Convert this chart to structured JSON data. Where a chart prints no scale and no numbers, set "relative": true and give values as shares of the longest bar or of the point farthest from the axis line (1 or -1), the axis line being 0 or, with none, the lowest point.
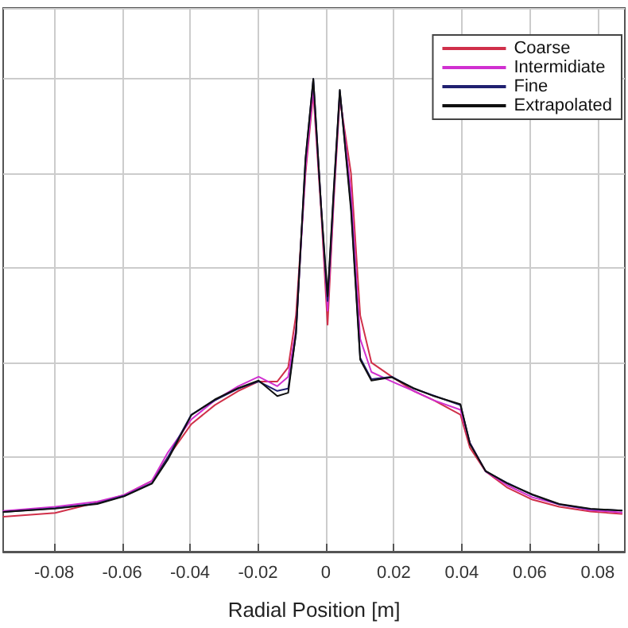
{
  "chart_data": {
    "type": "line",
    "xlabel": "Radial Position [m]",
    "relative": true,
    "x": [
      -0.0949,
      -0.0797,
      -0.0673,
      -0.0594,
      -0.0512,
      -0.0465,
      -0.0396,
      -0.0327,
      -0.0258,
      -0.0198,
      -0.0143,
      -0.0111,
      -0.0088,
      -0.006,
      -0.0037,
      -0.0014,
      0.0005,
      0.0023,
      0.0041,
      0.0074,
      0.0101,
      0.0134,
      0.0194,
      0.0258,
      0.0318,
      0.0396,
      0.0424,
      0.047,
      0.0535,
      0.0608,
      0.0687,
      0.0779,
      0.0871
    ],
    "series": [
      {
        "name": "Coarse",
        "color": "#d0304a",
        "values": [
          0.074,
          0.082,
          0.104,
          0.12,
          0.15,
          0.2,
          0.27,
          0.31,
          0.34,
          0.36,
          0.36,
          0.39,
          0.5,
          0.8,
          0.97,
          0.72,
          0.48,
          0.74,
          0.96,
          0.8,
          0.5,
          0.4,
          0.37,
          0.34,
          0.32,
          0.29,
          0.22,
          0.17,
          0.135,
          0.11,
          0.095,
          0.085,
          0.08
        ]
      },
      {
        "name": "Intermidiate",
        "color": "#d030d0",
        "values": [
          0.086,
          0.095,
          0.106,
          0.12,
          0.15,
          0.21,
          0.28,
          0.32,
          0.35,
          0.37,
          0.35,
          0.37,
          0.47,
          0.81,
          0.98,
          0.73,
          0.51,
          0.75,
          0.97,
          0.76,
          0.45,
          0.38,
          0.36,
          0.34,
          0.32,
          0.3,
          0.23,
          0.17,
          0.14,
          0.115,
          0.1,
          0.088,
          0.083
        ]
      },
      {
        "name": "Fine",
        "color": "#202070",
        "values": [
          0.084,
          0.092,
          0.102,
          0.118,
          0.145,
          0.2,
          0.29,
          0.32,
          0.345,
          0.36,
          0.34,
          0.345,
          0.46,
          0.83,
          1.0,
          0.73,
          0.53,
          0.76,
          0.975,
          0.73,
          0.41,
          0.365,
          0.37,
          0.345,
          0.33,
          0.31,
          0.23,
          0.17,
          0.145,
          0.12,
          0.1,
          0.09,
          0.087
        ]
      },
      {
        "name": "Extrapolated",
        "color": "#101010",
        "values": [
          0.084,
          0.091,
          0.101,
          0.117,
          0.144,
          0.195,
          0.289,
          0.322,
          0.346,
          0.362,
          0.329,
          0.336,
          0.463,
          0.832,
          1.0,
          0.73,
          0.54,
          0.765,
          0.977,
          0.721,
          0.406,
          0.362,
          0.369,
          0.346,
          0.329,
          0.312,
          0.228,
          0.171,
          0.144,
          0.121,
          0.101,
          0.091,
          0.087
        ]
      }
    ],
    "xlim": [
      -0.095,
      0.088
    ],
    "xticks": [
      -0.08,
      -0.06,
      -0.04,
      -0.02,
      0,
      0.02,
      0.04,
      0.06,
      0.08
    ],
    "grid": true,
    "legend": "top right",
    "marker": "none",
    "line_style": "solid"
  }
}
